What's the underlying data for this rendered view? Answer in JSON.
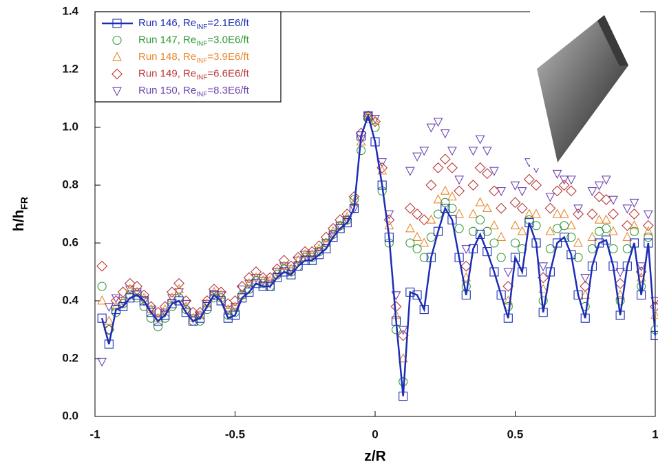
{
  "chart_data": {
    "type": "scatter",
    "x_label": "z/R",
    "y_label": "h/h",
    "y_label_sub": "FR",
    "xlim": [
      -1,
      1
    ],
    "ylim": [
      0,
      1.4
    ],
    "xticks": [
      -1,
      -0.5,
      0,
      0.5,
      1
    ],
    "yticks": [
      {
        "value": 0,
        "label": "0.0"
      },
      0.2,
      0.4,
      0.6,
      0.8,
      {
        "value": 1,
        "label": "1.0"
      },
      1.2,
      1.4
    ],
    "legend": "upper left",
    "x": [
      -0.975,
      -0.95,
      -0.925,
      -0.9,
      -0.875,
      -0.85,
      -0.825,
      -0.8,
      -0.775,
      -0.75,
      -0.725,
      -0.7,
      -0.675,
      -0.65,
      -0.625,
      -0.6,
      -0.575,
      -0.55,
      -0.525,
      -0.5,
      -0.475,
      -0.45,
      -0.425,
      -0.4,
      -0.375,
      -0.35,
      -0.325,
      -0.3,
      -0.275,
      -0.25,
      -0.225,
      -0.2,
      -0.175,
      -0.15,
      -0.125,
      -0.1,
      -0.075,
      -0.05,
      -0.025,
      0,
      0.025,
      0.05,
      0.075,
      0.1,
      0.125,
      0.15,
      0.175,
      0.2,
      0.225,
      0.25,
      0.275,
      0.3,
      0.325,
      0.35,
      0.375,
      0.4,
      0.425,
      0.45,
      0.475,
      0.5,
      0.525,
      0.55,
      0.575,
      0.6,
      0.625,
      0.65,
      0.675,
      0.7,
      0.725,
      0.75,
      0.775,
      0.8,
      0.825,
      0.85,
      0.875,
      0.9,
      0.925,
      0.95,
      0.975,
      1
    ],
    "series": [
      {
        "name": "Run 146, Re",
        "name_sub": "INF",
        "name_end": "=2.1E6/ft",
        "color": "#1c2db5",
        "marker": "square",
        "line": true,
        "values": [
          0.34,
          0.25,
          0.37,
          0.38,
          0.41,
          0.42,
          0.4,
          0.36,
          0.33,
          0.35,
          0.39,
          0.4,
          0.36,
          0.33,
          0.34,
          0.38,
          0.42,
          0.4,
          0.34,
          0.35,
          0.41,
          0.43,
          0.46,
          0.45,
          0.45,
          0.48,
          0.5,
          0.49,
          0.52,
          0.54,
          0.54,
          0.56,
          0.58,
          0.62,
          0.65,
          0.67,
          0.72,
          0.97,
          1.04,
          0.95,
          0.8,
          0.62,
          0.33,
          0.07,
          0.43,
          0.42,
          0.37,
          0.55,
          0.64,
          0.72,
          0.68,
          0.55,
          0.42,
          0.58,
          0.63,
          0.57,
          0.5,
          0.42,
          0.34,
          0.55,
          0.5,
          0.67,
          0.6,
          0.36,
          0.5,
          0.6,
          0.62,
          0.56,
          0.42,
          0.34,
          0.52,
          0.6,
          0.61,
          0.52,
          0.35,
          0.52,
          0.6,
          0.42,
          0.6,
          0.28
        ]
      },
      {
        "name": "Run 147, Re",
        "name_sub": "INF",
        "name_end": "=3.0E6/ft",
        "color": "#2f9a33",
        "marker": "circle",
        "line": false,
        "values": [
          0.45,
          0.3,
          0.36,
          0.39,
          0.42,
          0.41,
          0.38,
          0.34,
          0.31,
          0.34,
          0.38,
          0.41,
          0.37,
          0.33,
          0.33,
          0.37,
          0.41,
          0.41,
          0.35,
          0.36,
          0.42,
          0.44,
          0.47,
          0.46,
          0.45,
          0.49,
          0.51,
          0.5,
          0.52,
          0.55,
          0.55,
          0.57,
          0.6,
          0.63,
          0.66,
          0.68,
          0.75,
          0.92,
          1.03,
          1.0,
          0.78,
          0.6,
          0.3,
          0.12,
          0.6,
          0.58,
          0.55,
          0.62,
          0.7,
          0.74,
          0.72,
          0.65,
          0.45,
          0.64,
          0.68,
          0.64,
          0.6,
          0.55,
          0.38,
          0.6,
          0.58,
          0.68,
          0.66,
          0.4,
          0.58,
          0.65,
          0.66,
          0.62,
          0.55,
          0.38,
          0.58,
          0.64,
          0.65,
          0.58,
          0.4,
          0.58,
          0.64,
          0.45,
          0.62,
          0.3
        ]
      },
      {
        "name": "Run 148, Re",
        "name_sub": "INF",
        "name_end": "=3.9E6/ft",
        "color": "#e8872c",
        "marker": "triangle-up",
        "line": false,
        "values": [
          0.4,
          0.33,
          0.38,
          0.4,
          0.44,
          0.43,
          0.41,
          0.37,
          0.34,
          0.37,
          0.41,
          0.44,
          0.38,
          0.34,
          0.35,
          0.39,
          0.43,
          0.42,
          0.37,
          0.38,
          0.42,
          0.46,
          0.48,
          0.47,
          0.47,
          0.5,
          0.52,
          0.51,
          0.54,
          0.56,
          0.56,
          0.58,
          0.6,
          0.64,
          0.66,
          0.69,
          0.74,
          0.95,
          1.04,
          1.02,
          0.85,
          0.66,
          0.35,
          0.2,
          0.65,
          0.62,
          0.6,
          0.68,
          0.75,
          0.78,
          0.76,
          0.7,
          0.48,
          0.7,
          0.74,
          0.72,
          0.66,
          0.62,
          0.4,
          0.66,
          0.64,
          0.7,
          0.7,
          0.44,
          0.64,
          0.7,
          0.7,
          0.66,
          0.6,
          0.42,
          0.62,
          0.68,
          0.68,
          0.64,
          0.42,
          0.62,
          0.66,
          0.48,
          0.64,
          0.35
        ]
      },
      {
        "name": "Run 149, Re",
        "name_sub": "INF",
        "name_end": "=6.6E6/ft",
        "color": "#b83a3a",
        "marker": "diamond",
        "line": false,
        "values": [
          0.52,
          0.3,
          0.4,
          0.43,
          0.46,
          0.45,
          0.42,
          0.38,
          0.36,
          0.38,
          0.43,
          0.46,
          0.4,
          0.36,
          0.36,
          0.4,
          0.44,
          0.43,
          0.39,
          0.4,
          0.45,
          0.48,
          0.5,
          0.48,
          0.48,
          0.51,
          0.54,
          0.52,
          0.55,
          0.57,
          0.57,
          0.59,
          0.62,
          0.65,
          0.68,
          0.7,
          0.76,
          0.98,
          1.04,
          1.02,
          0.86,
          0.68,
          0.38,
          0.28,
          0.72,
          0.7,
          0.68,
          0.8,
          0.86,
          0.89,
          0.86,
          0.78,
          0.52,
          0.8,
          0.86,
          0.84,
          0.78,
          0.72,
          0.45,
          0.74,
          0.72,
          0.82,
          0.8,
          0.48,
          0.72,
          0.78,
          0.8,
          0.78,
          0.7,
          0.45,
          0.7,
          0.76,
          0.75,
          0.7,
          0.46,
          0.66,
          0.7,
          0.5,
          0.66,
          0.38
        ]
      },
      {
        "name": "Run 150, Re",
        "name_sub": "INF",
        "name_end": "=8.3E6/ft",
        "color": "#6c44b0",
        "marker": "triangle-down",
        "line": false,
        "values": [
          0.19,
          0.38,
          0.41,
          0.4,
          0.44,
          0.43,
          0.4,
          0.37,
          0.34,
          0.36,
          0.41,
          0.43,
          0.39,
          0.34,
          0.35,
          0.39,
          0.42,
          0.42,
          0.37,
          0.38,
          0.44,
          0.46,
          0.48,
          0.47,
          0.46,
          0.5,
          0.52,
          0.51,
          0.54,
          0.56,
          0.56,
          0.57,
          0.6,
          0.63,
          0.66,
          0.68,
          0.72,
          0.96,
          1.04,
          1.03,
          0.88,
          0.7,
          0.42,
          0.3,
          0.85,
          0.9,
          0.92,
          1.0,
          1.02,
          0.98,
          0.92,
          0.82,
          0.58,
          0.92,
          0.96,
          0.92,
          0.85,
          0.78,
          0.5,
          0.8,
          0.78,
          0.88,
          0.86,
          0.52,
          0.76,
          0.84,
          0.82,
          0.82,
          0.72,
          0.48,
          0.78,
          0.8,
          0.82,
          0.75,
          0.5,
          0.72,
          0.74,
          0.52,
          0.7,
          0.4
        ]
      }
    ]
  }
}
